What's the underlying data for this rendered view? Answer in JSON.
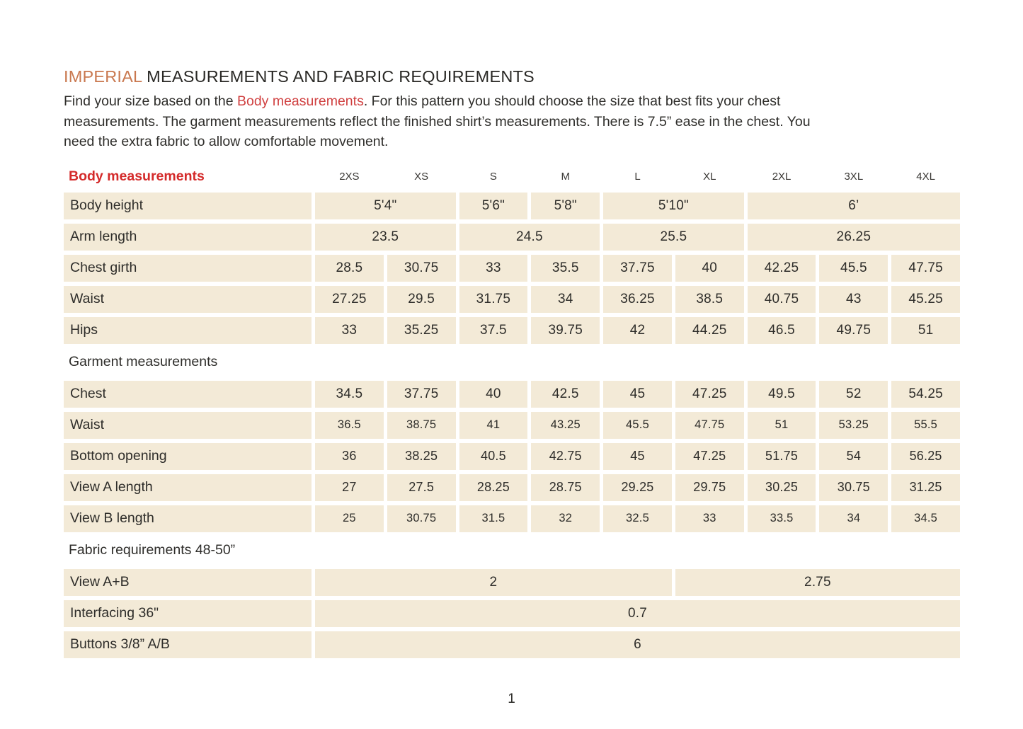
{
  "title": {
    "highlight": "IMPERIAL",
    "rest": " MEASUREMENTS AND FABRIC REQUIREMENTS"
  },
  "intro": {
    "line1_pre": "Find your size based on the ",
    "line1_link": "Body measurements",
    "line1_post": ". For this pattern you should choose the size that best fits your chest",
    "line2": "measurements. The garment measurements reflect the finished shirt’s measurements. There is 7.5” ease in the chest. You",
    "line3": "need the extra fabric to allow comfortable movement."
  },
  "table": {
    "corner_label": "Body measurements",
    "size_headers": [
      "2XS",
      "XS",
      "S",
      "M",
      "L",
      "XL",
      "2XL",
      "3XL",
      "4XL"
    ],
    "rows": [
      {
        "type": "data",
        "label": "Body height",
        "size": "lg",
        "cells": [
          {
            "text": "5'4\"",
            "span": 2
          },
          {
            "text": "5'6\"",
            "span": 1
          },
          {
            "text": "5'8\"",
            "span": 1
          },
          {
            "text": "5'10\"",
            "span": 2
          },
          {
            "text": "6’",
            "span": 3
          }
        ]
      },
      {
        "type": "data",
        "label": "Arm length",
        "size": "lg",
        "cells": [
          {
            "text": "23.5",
            "span": 2
          },
          {
            "text": "24.5",
            "span": 2
          },
          {
            "text": "25.5",
            "span": 2
          },
          {
            "text": "26.25",
            "span": 3
          }
        ]
      },
      {
        "type": "data",
        "label": "Chest girth",
        "size": "lg",
        "cells": [
          {
            "text": "28.5",
            "span": 1
          },
          {
            "text": "30.75",
            "span": 1
          },
          {
            "text": "33",
            "span": 1
          },
          {
            "text": "35.5",
            "span": 1
          },
          {
            "text": "37.75",
            "span": 1
          },
          {
            "text": "40",
            "span": 1
          },
          {
            "text": "42.25",
            "span": 1
          },
          {
            "text": "45.5",
            "span": 1
          },
          {
            "text": "47.75",
            "span": 1
          }
        ]
      },
      {
        "type": "data",
        "label": "Waist",
        "size": "lg",
        "cells": [
          {
            "text": "27.25",
            "span": 1
          },
          {
            "text": "29.5",
            "span": 1
          },
          {
            "text": "31.75",
            "span": 1
          },
          {
            "text": "34",
            "span": 1
          },
          {
            "text": "36.25",
            "span": 1
          },
          {
            "text": "38.5",
            "span": 1
          },
          {
            "text": "40.75",
            "span": 1
          },
          {
            "text": "43",
            "span": 1
          },
          {
            "text": "45.25",
            "span": 1
          }
        ]
      },
      {
        "type": "data",
        "label": "Hips",
        "size": "lg",
        "cells": [
          {
            "text": "33",
            "span": 1
          },
          {
            "text": "35.25",
            "span": 1
          },
          {
            "text": "37.5",
            "span": 1
          },
          {
            "text": "39.75",
            "span": 1
          },
          {
            "text": "42",
            "span": 1
          },
          {
            "text": "44.25",
            "span": 1
          },
          {
            "text": "46.5",
            "span": 1
          },
          {
            "text": "49.75",
            "span": 1
          },
          {
            "text": "51",
            "span": 1
          }
        ]
      },
      {
        "type": "section",
        "label": "Garment measurements"
      },
      {
        "type": "data",
        "label": "Chest",
        "size": "lg",
        "cells": [
          {
            "text": "34.5",
            "span": 1
          },
          {
            "text": "37.75",
            "span": 1
          },
          {
            "text": "40",
            "span": 1
          },
          {
            "text": "42.5",
            "span": 1
          },
          {
            "text": "45",
            "span": 1
          },
          {
            "text": "47.25",
            "span": 1
          },
          {
            "text": "49.5",
            "span": 1
          },
          {
            "text": "52",
            "span": 1
          },
          {
            "text": "54.25",
            "span": 1
          }
        ]
      },
      {
        "type": "data",
        "label": "Waist",
        "size": "sm",
        "cells": [
          {
            "text": "36.5",
            "span": 1
          },
          {
            "text": "38.75",
            "span": 1
          },
          {
            "text": "41",
            "span": 1
          },
          {
            "text": "43.25",
            "span": 1
          },
          {
            "text": "45.5",
            "span": 1
          },
          {
            "text": "47.75",
            "span": 1
          },
          {
            "text": "51",
            "span": 1
          },
          {
            "text": "53.25",
            "span": 1
          },
          {
            "text": "55.5",
            "span": 1
          }
        ]
      },
      {
        "type": "data",
        "label": "Bottom opening",
        "size": "md",
        "cells": [
          {
            "text": "36",
            "span": 1
          },
          {
            "text": "38.25",
            "span": 1
          },
          {
            "text": "40.5",
            "span": 1
          },
          {
            "text": "42.75",
            "span": 1
          },
          {
            "text": "45",
            "span": 1
          },
          {
            "text": "47.25",
            "span": 1
          },
          {
            "text": "51.75",
            "span": 1
          },
          {
            "text": "54",
            "span": 1
          },
          {
            "text": "56.25",
            "span": 1
          }
        ]
      },
      {
        "type": "data",
        "label": "View A length",
        "size": "md",
        "cells": [
          {
            "text": "27",
            "span": 1
          },
          {
            "text": "27.5",
            "span": 1
          },
          {
            "text": "28.25",
            "span": 1
          },
          {
            "text": "28.75",
            "span": 1
          },
          {
            "text": "29.25",
            "span": 1
          },
          {
            "text": "29.75",
            "span": 1
          },
          {
            "text": "30.25",
            "span": 1
          },
          {
            "text": "30.75",
            "span": 1
          },
          {
            "text": "31.25",
            "span": 1
          }
        ]
      },
      {
        "type": "data",
        "label": "View B length",
        "size": "sm",
        "cells": [
          {
            "text": "25",
            "span": 1
          },
          {
            "text": "30.75",
            "span": 1
          },
          {
            "text": "31.5",
            "span": 1
          },
          {
            "text": "32",
            "span": 1
          },
          {
            "text": "32.5",
            "span": 1
          },
          {
            "text": "33",
            "span": 1
          },
          {
            "text": "33.5",
            "span": 1
          },
          {
            "text": "34",
            "span": 1
          },
          {
            "text": "34.5",
            "span": 1
          }
        ]
      },
      {
        "type": "section",
        "label": "Fabric requirements 48-50”"
      },
      {
        "type": "data",
        "label": "View A+B",
        "size": "lg",
        "cells": [
          {
            "text": "2",
            "span": 5
          },
          {
            "text": "2.75",
            "span": 4
          }
        ]
      },
      {
        "type": "data",
        "label": "Interfacing 36\"",
        "size": "lg",
        "cells": [
          {
            "text": "0.7",
            "span": 9
          }
        ]
      },
      {
        "type": "data",
        "label": "Buttons 3/8” A/B",
        "size": "lg",
        "cells": [
          {
            "text": "6",
            "span": 9
          }
        ]
      }
    ]
  },
  "footer": {
    "page_number": "1"
  },
  "colors": {
    "accent_orange": "#c9784f",
    "accent_red": "#d42a2a",
    "link_red": "#d04040",
    "cell_beige": "#f3ead7",
    "text_dark": "#2e2d2a"
  }
}
